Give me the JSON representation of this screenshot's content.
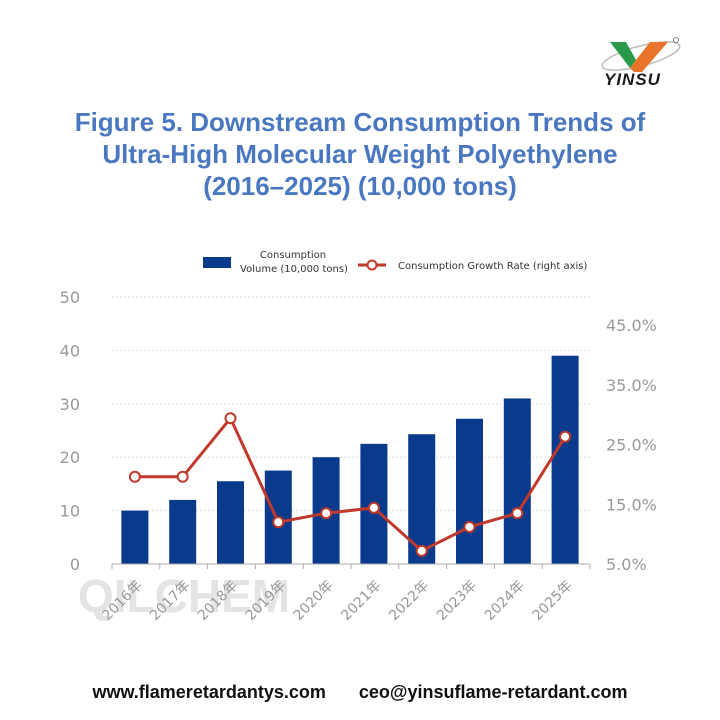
{
  "logo": {
    "text": "YINSU"
  },
  "title": {
    "line1": "Figure 5. Downstream Consumption Trends of",
    "line2": "Ultra-High Molecular Weight Polyethylene",
    "line3": "(2016–2025) (10,000 tons)"
  },
  "watermark": "QILCHEM",
  "footer": {
    "website": "www.flameretardantys.com",
    "email": "ceo@yinsuflame-retardant.com"
  },
  "chart_data": {
    "type": "bar+line",
    "categories": [
      "2016年",
      "2017年",
      "2018年",
      "2019年",
      "2020年",
      "2021年",
      "2022年",
      "2023年",
      "2024年",
      "2025年"
    ],
    "series": [
      {
        "name_line1": "Consumption",
        "name_line2": "Volume (10,000 tons)",
        "name": "Consumption Volume (10,000 tons)",
        "type": "bar",
        "axis": "left",
        "color": "#0a3a8c",
        "values": [
          10,
          12,
          15.5,
          17.5,
          20,
          22.5,
          24.3,
          27.2,
          31,
          39
        ]
      },
      {
        "name": "Consumption Growth Rate (right axis)",
        "type": "line",
        "axis": "right",
        "color": "#c0392b",
        "values": [
          19.6,
          19.6,
          29.4,
          12.0,
          13.5,
          14.4,
          7.2,
          11.2,
          13.5,
          26.3
        ]
      }
    ],
    "y_left": {
      "range": [
        0,
        50
      ],
      "ticks": [
        "0",
        "10",
        "20",
        "30",
        "40",
        "50"
      ]
    },
    "y_right": {
      "range": [
        5,
        45
      ],
      "ticks": [
        "5.0%",
        "15.0%",
        "25.0%",
        "35.0%",
        "45.0%"
      ],
      "unit": "%"
    },
    "grid": "horizontal dotted",
    "legend": "top"
  }
}
